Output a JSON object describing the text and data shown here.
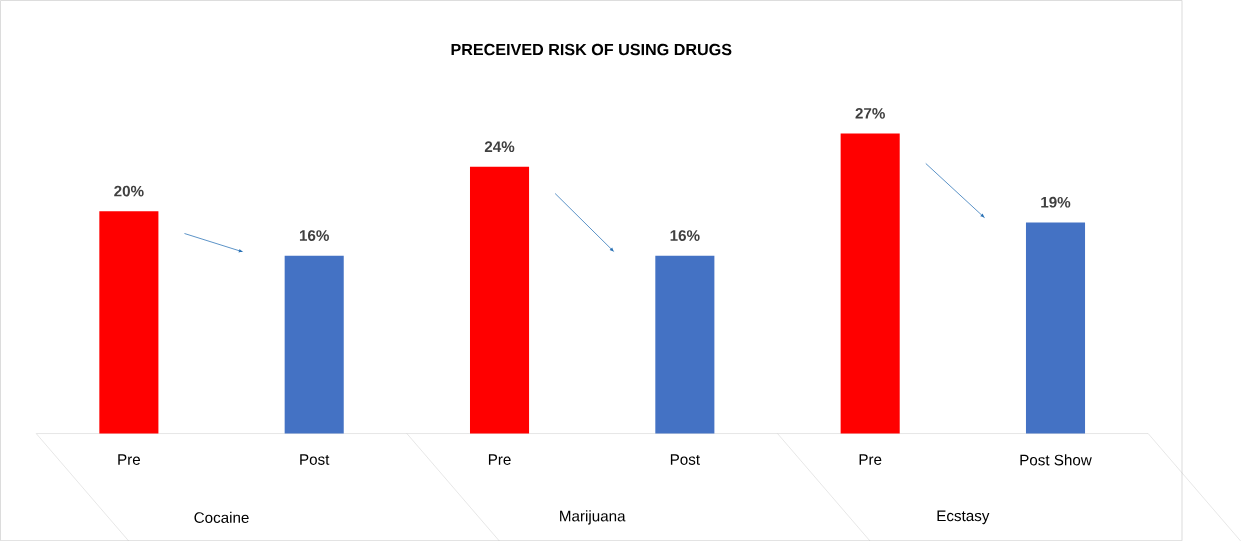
{
  "chart_data": {
    "type": "bar",
    "title": "PRECEIVED RISK OF USING DRUGS",
    "categories": [
      "Pre",
      "Post",
      "Pre",
      "Post",
      "Pre",
      "Post Show"
    ],
    "values": [
      20,
      16,
      24,
      16,
      27,
      19
    ],
    "value_labels": [
      "20%",
      "16%",
      "24%",
      "16%",
      "27%",
      "19%"
    ],
    "colors": [
      "#ff0000",
      "#4472c4",
      "#ff0000",
      "#4472c4",
      "#ff0000",
      "#4472c4"
    ],
    "annotations": [
      "Cocaine",
      "Marijuana",
      "Ecstasy"
    ]
  }
}
